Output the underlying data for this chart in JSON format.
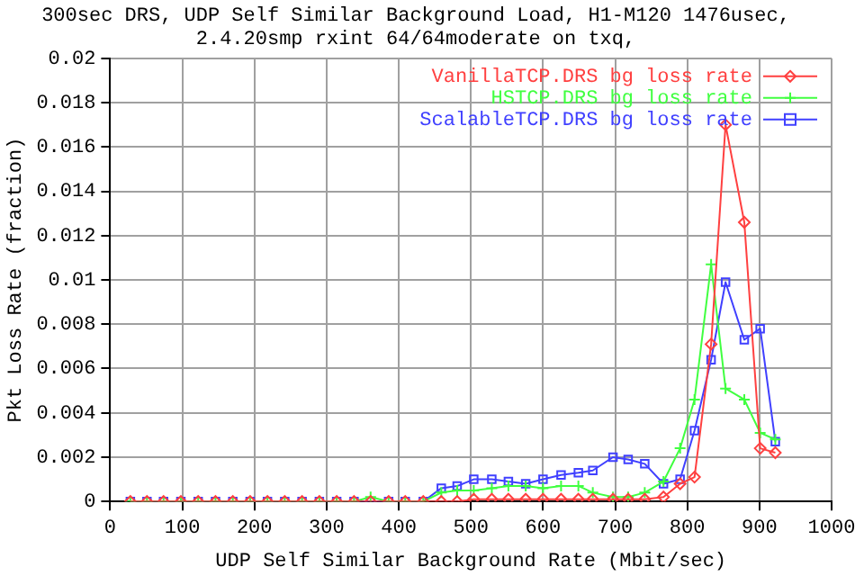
{
  "chart_data": {
    "type": "line",
    "title": "300sec DRS, UDP Self Similar Background Load, H1-M120 1476usec,\n2.4.20smp rxint 64/64moderate on txq,",
    "xlabel": "UDP Self Similar Background Rate (Mbit/sec)",
    "ylabel": "Pkt Loss Rate (fraction)",
    "x": [
      28,
      51,
      74,
      98,
      122,
      146,
      170,
      194,
      218,
      242,
      266,
      290,
      314,
      338,
      361,
      386,
      409,
      434,
      459,
      481,
      504,
      529,
      552,
      576,
      600,
      625,
      649,
      669,
      697,
      718,
      741,
      767,
      790,
      810,
      833,
      853,
      879,
      901,
      922
    ],
    "series": [
      {
        "name": "VanillaTCP.DRS bg loss rate",
        "color": "#ff4040",
        "marker": "diamond",
        "values": [
          0,
          0,
          0,
          0,
          0,
          0,
          0,
          0,
          0,
          0,
          0,
          0,
          0,
          0,
          0,
          0,
          0,
          0,
          0,
          0,
          0.0001,
          0.0001,
          0.0001,
          0.0001,
          0.0001,
          0.0001,
          0.0001,
          0.0001,
          0.0001,
          0.0001,
          0.0001,
          0.0002,
          0.0008,
          0.0011,
          0.0071,
          0.017,
          0.0126,
          0.0024,
          0.0022
        ]
      },
      {
        "name": "HSTCP.DRS bg loss rate",
        "color": "#40ff40",
        "marker": "cross",
        "values": [
          0,
          0,
          0,
          0,
          0,
          0,
          0,
          0,
          0,
          0,
          0,
          0,
          0,
          0,
          0.0002,
          0,
          0,
          0,
          0.0004,
          0.0005,
          0.0005,
          0.0006,
          0.0007,
          0.0007,
          0.0006,
          0.0007,
          0.0007,
          0.0004,
          0.0002,
          0.0002,
          0.0004,
          0.0009,
          0.0024,
          0.0046,
          0.0107,
          0.0051,
          0.0046,
          0.0031,
          0.0028
        ]
      },
      {
        "name": "ScalableTCP.DRS bg loss rate",
        "color": "#4040ff",
        "marker": "square",
        "values": [
          0,
          0,
          0,
          0,
          0,
          0,
          0,
          0,
          0,
          0,
          0,
          0,
          0,
          0,
          0,
          0,
          0,
          0,
          0.0006,
          0.0007,
          0.001,
          0.001,
          0.0009,
          0.0008,
          0.001,
          0.0012,
          0.0013,
          0.0014,
          0.002,
          0.0019,
          0.0017,
          0.0008,
          0.001,
          0.0032,
          0.0064,
          0.0099,
          0.0073,
          0.0078,
          0.0027
        ]
      }
    ],
    "xlim": [
      0,
      1000
    ],
    "xticks": [
      0,
      100,
      200,
      300,
      400,
      500,
      600,
      700,
      800,
      900,
      1000
    ],
    "ylim": [
      0,
      0.02
    ],
    "yticks": [
      0,
      0.002,
      0.004,
      0.006,
      0.008,
      0.01,
      0.012,
      0.014,
      0.016,
      0.018,
      0.02
    ],
    "grid": true,
    "legend": "top right",
    "line_style": "solid"
  }
}
